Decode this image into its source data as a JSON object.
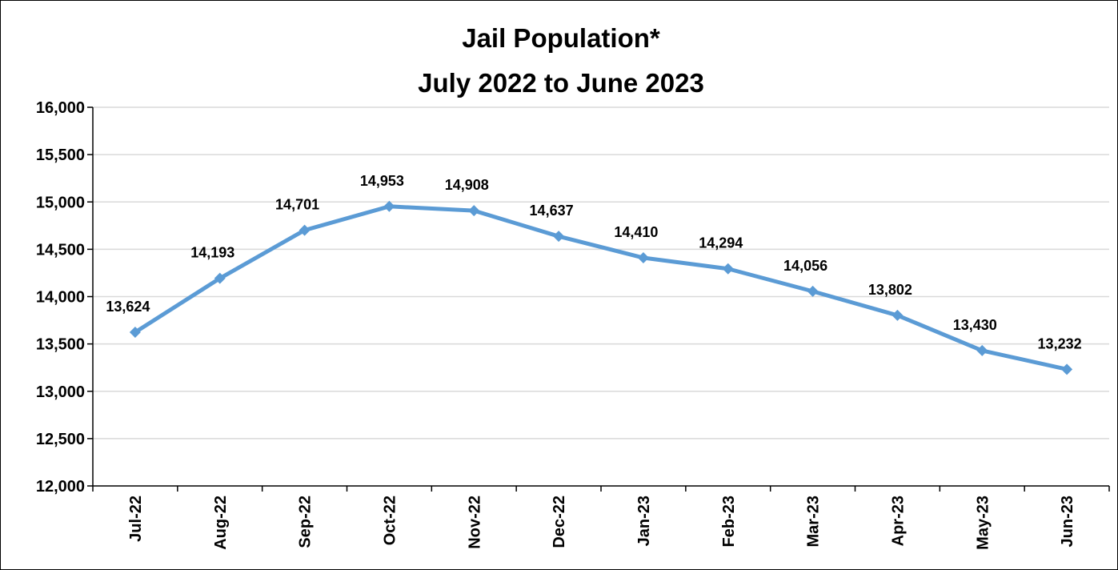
{
  "chart_data": {
    "type": "line",
    "title_lines": [
      "Jail Population*",
      "July 2022 to June 2023"
    ],
    "categories": [
      "Jul-22",
      "Aug-22",
      "Sep-22",
      "Oct-22",
      "Nov-22",
      "Dec-22",
      "Jan-23",
      "Feb-23",
      "Mar-23",
      "Apr-23",
      "May-23",
      "Jun-23"
    ],
    "series": [
      {
        "values": [
          13624,
          14193,
          14701,
          14953,
          14908,
          14637,
          14410,
          14294,
          14056,
          13802,
          13430,
          13232
        ],
        "labels": [
          "13,624",
          "14,193",
          "14,701",
          "14,953",
          "14,908",
          "14,637",
          "14,410",
          "14,294",
          "14,056",
          "13,802",
          "13,430",
          "13,232"
        ],
        "color": "#5b9bd5",
        "marker": "diamond"
      }
    ],
    "ylim": [
      12000,
      16000
    ],
    "yticks": [
      12000,
      12500,
      13000,
      13500,
      14000,
      14500,
      15000,
      15500,
      16000
    ],
    "ytick_labels": [
      "12,000",
      "12,500",
      "13,000",
      "13,500",
      "14,000",
      "14,500",
      "15,000",
      "15,500",
      "16,000"
    ],
    "xlabel": "",
    "ylabel": "",
    "grid": true,
    "gridline_color": "#d9d9d9",
    "legend": "none"
  }
}
